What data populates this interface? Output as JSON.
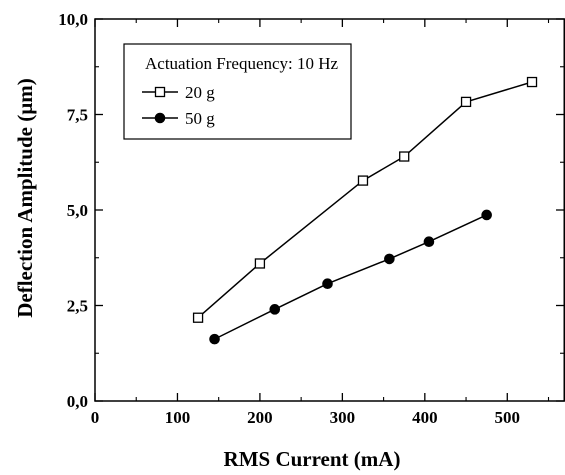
{
  "chart_data": {
    "type": "line",
    "title": "",
    "xlabel": "RMS Current (mA)",
    "ylabel": "Deflection Amplitude (µm)",
    "xlim": [
      0,
      570
    ],
    "ylim": [
      0,
      10
    ],
    "x_ticks": [
      0,
      100,
      200,
      300,
      400,
      500
    ],
    "x_tick_labels": [
      "0",
      "100",
      "200",
      "300",
      "400",
      "500"
    ],
    "y_ticks": [
      0,
      2.5,
      5,
      7.5,
      10
    ],
    "y_tick_labels": [
      "0,0",
      "2,5",
      "5,0",
      "7,5",
      "10,0"
    ],
    "grid": false,
    "legend": {
      "title": "Actuation Frequency: 10 Hz",
      "placement": "top-left"
    },
    "series": [
      {
        "name": "20 g",
        "marker": "open-square",
        "color": "#000000",
        "points": [
          [
            125,
            2.18
          ],
          [
            200,
            3.6
          ],
          [
            325,
            5.77
          ],
          [
            375,
            6.4
          ],
          [
            450,
            7.83
          ],
          [
            530,
            8.35
          ]
        ]
      },
      {
        "name": "50 g",
        "marker": "filled-circle",
        "color": "#000000",
        "points": [
          [
            145,
            1.62
          ],
          [
            218,
            2.4
          ],
          [
            282,
            3.07
          ],
          [
            357,
            3.72
          ],
          [
            405,
            4.17
          ],
          [
            475,
            4.87
          ]
        ]
      }
    ]
  }
}
